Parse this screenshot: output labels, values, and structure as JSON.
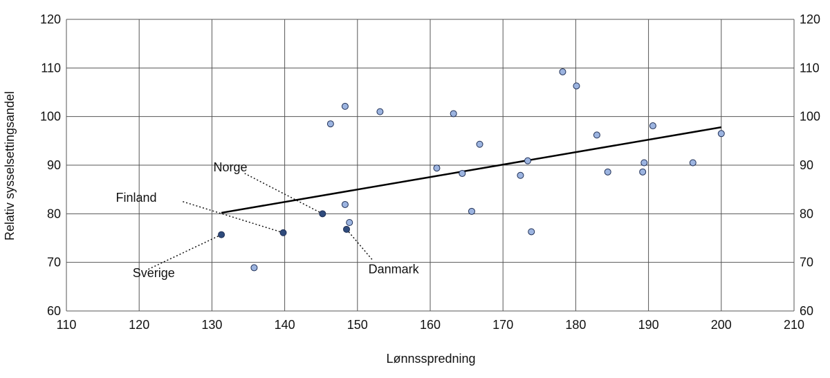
{
  "chart_data": {
    "type": "scatter",
    "title": "",
    "xlabel": "Lønnsspredning",
    "ylabel": "Relativ sysselsettingsandel",
    "xlim": [
      110,
      210
    ],
    "ylim": [
      60,
      120
    ],
    "xticks": [
      110,
      120,
      130,
      140,
      150,
      160,
      170,
      180,
      190,
      200,
      210
    ],
    "yticks": [
      60,
      70,
      80,
      90,
      100,
      110,
      120
    ],
    "right_axis": true,
    "grid": true,
    "colors": {
      "point_fill": "#9cb4e0",
      "point_stroke": "#1f2f55",
      "highlight_fill": "#2f4b7c",
      "trend": "#000000",
      "grid": "#555555"
    },
    "points": [
      {
        "x": 135.8,
        "y": 68.9
      },
      {
        "x": 146.3,
        "y": 98.5
      },
      {
        "x": 148.3,
        "y": 102.1
      },
      {
        "x": 148.3,
        "y": 81.9
      },
      {
        "x": 148.9,
        "y": 78.2
      },
      {
        "x": 153.1,
        "y": 101.0
      },
      {
        "x": 160.9,
        "y": 89.4
      },
      {
        "x": 163.2,
        "y": 100.6
      },
      {
        "x": 164.4,
        "y": 88.3
      },
      {
        "x": 165.7,
        "y": 80.5
      },
      {
        "x": 166.8,
        "y": 94.3
      },
      {
        "x": 172.4,
        "y": 87.9
      },
      {
        "x": 173.4,
        "y": 90.9
      },
      {
        "x": 173.9,
        "y": 76.3
      },
      {
        "x": 178.2,
        "y": 109.2
      },
      {
        "x": 180.1,
        "y": 106.3
      },
      {
        "x": 182.9,
        "y": 96.2
      },
      {
        "x": 184.4,
        "y": 88.6
      },
      {
        "x": 189.2,
        "y": 88.6
      },
      {
        "x": 189.4,
        "y": 90.5
      },
      {
        "x": 190.6,
        "y": 98.1
      },
      {
        "x": 196.1,
        "y": 90.5
      },
      {
        "x": 200.0,
        "y": 96.5
      }
    ],
    "highlighted": [
      {
        "label": "Sverige",
        "x": 131.3,
        "y": 75.7,
        "label_x": 119.1,
        "label_y": 67.8,
        "line_end_x": 121.0,
        "line_end_y": 68.4
      },
      {
        "label": "Finland",
        "x": 139.8,
        "y": 76.1,
        "label_x": 116.8,
        "label_y": 83.3,
        "line_end_x": 126.0,
        "line_end_y": 82.5
      },
      {
        "label": "Norge",
        "x": 145.2,
        "y": 80.0,
        "label_x": 130.2,
        "label_y": 89.6,
        "line_end_x": 134.5,
        "line_end_y": 88.3
      },
      {
        "label": "Danmark",
        "x": 148.5,
        "y": 76.8,
        "label_x": 151.5,
        "label_y": 68.6,
        "line_end_x": 152.0,
        "line_end_y": 70.6
      }
    ],
    "trendline": {
      "x1": 131.3,
      "y1": 80.2,
      "x2": 200.0,
      "y2": 97.8
    }
  }
}
